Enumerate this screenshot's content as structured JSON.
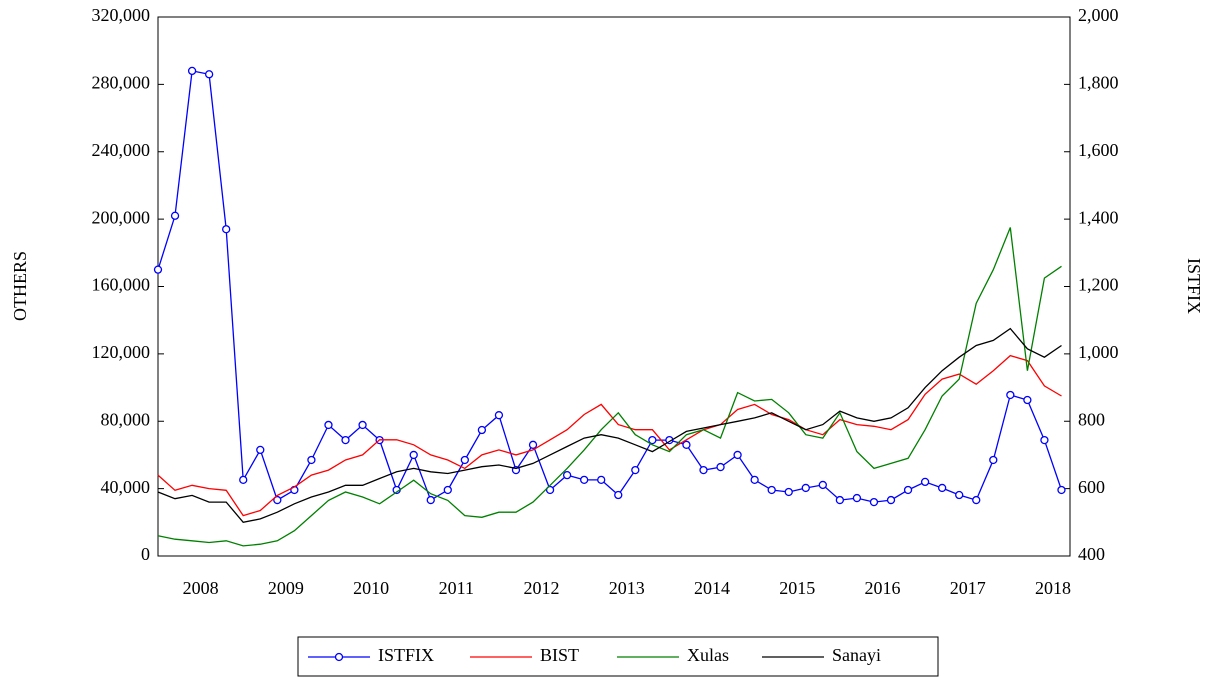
{
  "chart_data": {
    "type": "line",
    "y_label": "OTHERS",
    "y2_label": "ISTFIX",
    "x": [
      2008.0,
      2008.2,
      2008.4,
      2008.6,
      2008.8,
      2009.0,
      2009.2,
      2009.4,
      2009.6,
      2009.8,
      2010.0,
      2010.2,
      2010.4,
      2010.6,
      2010.8,
      2011.0,
      2011.2,
      2011.4,
      2011.6,
      2011.8,
      2012.0,
      2012.2,
      2012.4,
      2012.6,
      2012.8,
      2013.0,
      2013.2,
      2013.4,
      2013.6,
      2013.8,
      2014.0,
      2014.2,
      2014.4,
      2014.6,
      2014.8,
      2015.0,
      2015.2,
      2015.4,
      2015.6,
      2015.8,
      2016.0,
      2016.2,
      2016.4,
      2016.6,
      2016.8,
      2017.0,
      2017.2,
      2017.4,
      2017.6,
      2017.8,
      2018.0,
      2018.2,
      2018.4,
      2018.6
    ],
    "xlim": [
      2008.0,
      2018.7
    ],
    "xticks": [
      {
        "value": 2008.5,
        "label": "2008"
      },
      {
        "value": 2009.5,
        "label": "2009"
      },
      {
        "value": 2010.5,
        "label": "2010"
      },
      {
        "value": 2011.5,
        "label": "2011"
      },
      {
        "value": 2012.5,
        "label": "2012"
      },
      {
        "value": 2013.5,
        "label": "2013"
      },
      {
        "value": 2014.5,
        "label": "2014"
      },
      {
        "value": 2015.5,
        "label": "2015"
      },
      {
        "value": 2016.5,
        "label": "2016"
      },
      {
        "value": 2017.5,
        "label": "2017"
      },
      {
        "value": 2018.5,
        "label": "2018"
      }
    ],
    "ylim": [
      0,
      320000
    ],
    "yticks": [
      0,
      {
        "value": 40000,
        "label": "40,000"
      },
      {
        "value": 80000,
        "label": "80,000"
      },
      {
        "value": 120000,
        "label": "120,000"
      },
      {
        "value": 160000,
        "label": "160,000"
      },
      {
        "value": 200000,
        "label": "200,000"
      },
      {
        "value": 240000,
        "label": "240,000"
      },
      {
        "value": 280000,
        "label": "280,000"
      },
      {
        "value": 320000,
        "label": "320,000"
      }
    ],
    "y2lim": [
      400,
      2000
    ],
    "y2ticks": [
      400,
      600,
      800,
      {
        "value": 1000,
        "label": "1,000"
      },
      {
        "value": 1200,
        "label": "1,200"
      },
      {
        "value": 1400,
        "label": "1,400"
      },
      {
        "value": 1600,
        "label": "1,600"
      },
      {
        "value": 1800,
        "label": "1,800"
      },
      {
        "value": 2000,
        "label": "2,000"
      }
    ],
    "legend": "bottom",
    "series": [
      {
        "name": "ISTFIX",
        "color": "#0000ff",
        "axis": "y2",
        "marker": "circle",
        "values": [
          1250,
          1410,
          1840,
          1830,
          1370,
          626,
          715,
          566,
          596,
          685,
          789,
          744,
          789,
          744,
          596,
          700,
          566,
          596,
          685,
          774,
          818,
          655,
          730,
          596,
          640,
          626,
          626,
          581,
          655,
          744,
          744,
          730,
          655,
          664,
          700,
          626,
          596,
          590,
          602,
          611,
          566,
          572,
          560,
          566,
          596,
          620,
          602,
          581,
          566,
          685,
          878,
          863,
          744,
          596
        ]
      },
      {
        "name": "BIST",
        "color": "#ff0000",
        "values": [
          48000,
          39000,
          42000,
          40000,
          39000,
          24000,
          27000,
          36000,
          41000,
          48000,
          51000,
          57000,
          60000,
          69000,
          69000,
          66000,
          60000,
          57000,
          52000,
          60000,
          63000,
          60000,
          63000,
          69000,
          75000,
          84000,
          90000,
          78000,
          75000,
          75000,
          63000,
          69000,
          75000,
          78000,
          87000,
          90000,
          84000,
          81000,
          75000,
          72000,
          81000,
          78000,
          77000,
          75000,
          81000,
          96000,
          105000,
          108000,
          102000,
          110000,
          119000,
          116000,
          101000,
          95000
        ]
      },
      {
        "name": "Xulas",
        "color": "#008000",
        "values": [
          12000,
          10000,
          9000,
          8000,
          9000,
          6000,
          7000,
          9000,
          15000,
          24000,
          33000,
          38000,
          35000,
          31000,
          38000,
          45000,
          37000,
          33000,
          24000,
          23000,
          26000,
          26000,
          32000,
          42000,
          52000,
          63000,
          75000,
          85000,
          72000,
          66000,
          62000,
          72000,
          75000,
          70000,
          97000,
          92000,
          93000,
          85000,
          72000,
          70000,
          85000,
          62000,
          52000,
          55000,
          58000,
          75000,
          95000,
          105000,
          150000,
          170000,
          195000,
          110000,
          165000,
          172000
        ]
      },
      {
        "name": "Sanayi",
        "color": "#000000",
        "values": [
          38000,
          34000,
          36000,
          32000,
          32000,
          20000,
          22000,
          26000,
          31000,
          35000,
          38000,
          42000,
          42000,
          46000,
          50000,
          52000,
          50000,
          49000,
          51000,
          53000,
          54000,
          52000,
          55000,
          60000,
          65000,
          70000,
          72000,
          70000,
          66000,
          62000,
          68000,
          74000,
          76000,
          78000,
          80000,
          82000,
          85000,
          80000,
          75000,
          78000,
          86000,
          82000,
          80000,
          82000,
          88000,
          100000,
          110000,
          118000,
          125000,
          128000,
          135000,
          123000,
          118000,
          125000
        ]
      }
    ]
  }
}
